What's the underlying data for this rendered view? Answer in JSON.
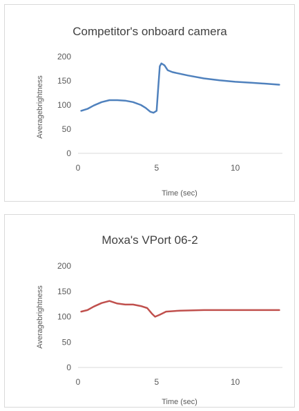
{
  "chart_data": [
    {
      "type": "line",
      "title": "Competitor's onboard camera",
      "xlabel": "Time (sec)",
      "ylabel": "Averagebrightness",
      "xlim": [
        0,
        13
      ],
      "ylim": [
        0,
        200
      ],
      "xticks": [
        0,
        5,
        10
      ],
      "yticks": [
        0,
        50,
        100,
        150,
        200
      ],
      "grid": false,
      "color": "#4f81bd",
      "series": [
        {
          "x": [
            0.2,
            0.6,
            1.0,
            1.5,
            2.0,
            2.5,
            3.0,
            3.5,
            4.0,
            4.3,
            4.6,
            4.8,
            5.0,
            5.1,
            5.2,
            5.3,
            5.5,
            5.7,
            6.0,
            7.0,
            8.0,
            9.0,
            10.0,
            11.0,
            12.0,
            12.8
          ],
          "y": [
            88,
            92,
            99,
            106,
            110,
            110,
            109,
            106,
            100,
            94,
            86,
            84,
            88,
            135,
            180,
            186,
            182,
            172,
            168,
            161,
            155,
            151,
            148,
            146,
            144,
            142
          ]
        }
      ]
    },
    {
      "type": "line",
      "title": "Moxa's VPort 06-2",
      "xlabel": "Time (sec)",
      "ylabel": "Averagebrightness",
      "xlim": [
        0,
        13
      ],
      "ylim": [
        0,
        200
      ],
      "xticks": [
        0,
        5,
        10
      ],
      "yticks": [
        0,
        50,
        100,
        150,
        200
      ],
      "grid": false,
      "color": "#c0504d",
      "series": [
        {
          "x": [
            0.2,
            0.6,
            1.0,
            1.5,
            2.0,
            2.5,
            3.0,
            3.5,
            4.0,
            4.4,
            4.7,
            4.9,
            5.2,
            5.6,
            6.5,
            8.0,
            10.0,
            12.0,
            12.8
          ],
          "y": [
            110,
            113,
            120,
            127,
            131,
            126,
            124,
            124,
            121,
            117,
            106,
            100,
            104,
            110,
            112,
            113,
            113,
            113,
            113
          ]
        }
      ]
    }
  ]
}
